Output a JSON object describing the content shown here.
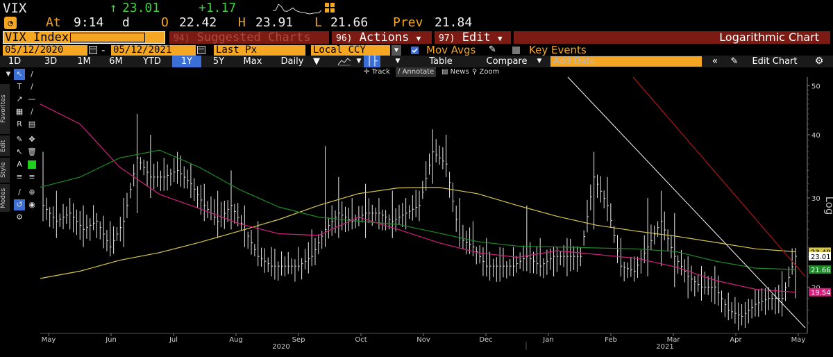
{
  "header": {
    "ticker": "VIX",
    "last_price": "23.01",
    "change": "+1.17",
    "time_prefix": "At",
    "time": "9:14",
    "time_suffix": "d",
    "open_label": "O",
    "open": "22.42",
    "high_label": "H",
    "high": "23.91",
    "low_label": "L",
    "low": "21.66",
    "prev_label": "Prev",
    "prev": "21.84"
  },
  "function_bar": {
    "security": "VIX Index",
    "suggested_num": "94)",
    "suggested": "Suggested Charts",
    "actions_num": "96)",
    "actions": "Actions",
    "edit_num": "97)",
    "edit": "Edit",
    "chart_mode": "Logarithmic Chart"
  },
  "date_row": {
    "start": "05/12/2020",
    "sep": "-",
    "end": "05/12/2021",
    "field": "Last Px",
    "currency": "Local CCY",
    "mov_avgs": "Mov Avgs",
    "key_events": "Key Events"
  },
  "toolbar": {
    "ranges": [
      "1D",
      "3D",
      "1M",
      "6M",
      "YTD",
      "1Y",
      "5Y",
      "Max"
    ],
    "selected_range": "1Y",
    "frequency": "Daily",
    "table": "Table",
    "compare": "Compare",
    "add_data_placeholder": "Add Data",
    "edit_chart": "Edit Chart"
  },
  "sub_toolbar": {
    "track": "Track",
    "annotate": "Annotate",
    "news": "News",
    "zoom": "Zoom"
  },
  "side_tabs": [
    "Favorites",
    "Edit",
    "Style",
    "Modes"
  ],
  "colors": {
    "accent_orange": "#f5a623",
    "price_bars": "#e8e8e8",
    "ma_yellow": "#d8c84a",
    "ma_green": "#1e8a2a",
    "ma_magenta": "#d0207a",
    "trend_white": "#ffffff",
    "trend_red": "#b01818"
  },
  "chart_data": {
    "type": "ohlc",
    "scale": "log",
    "ylabel": "Log",
    "ylim": [
      16.2,
      52
    ],
    "y_ticks": [
      20,
      30,
      40,
      50
    ],
    "x_month_ticks": [
      "May",
      "Jun",
      "Jul",
      "Aug",
      "Sep",
      "Oct",
      "Nov",
      "Dec",
      "Jan",
      "Feb",
      "Mar",
      "Apr",
      "May"
    ],
    "x_year_labels": [
      "2020",
      "2021"
    ],
    "price_series": [
      {
        "date": "2020-05",
        "low": 27,
        "high": 37,
        "close": 29
      },
      {
        "date": "2020-05",
        "low": 25,
        "high": 31,
        "close": 27
      },
      {
        "date": "2020-05",
        "low": 26,
        "high": 30,
        "close": 28
      },
      {
        "date": "2020-05",
        "low": 24,
        "high": 29,
        "close": 26
      },
      {
        "date": "2020-05",
        "low": 25,
        "high": 28,
        "close": 27
      },
      {
        "date": "2020-06",
        "low": 23,
        "high": 27,
        "close": 24
      },
      {
        "date": "2020-06",
        "low": 24,
        "high": 30,
        "close": 27
      },
      {
        "date": "2020-06",
        "low": 28,
        "high": 44,
        "close": 36
      },
      {
        "date": "2020-06",
        "low": 30,
        "high": 40,
        "close": 33
      },
      {
        "date": "2020-06",
        "low": 31,
        "high": 36,
        "close": 33
      },
      {
        "date": "2020-06",
        "low": 32,
        "high": 37,
        "close": 34
      },
      {
        "date": "2020-07",
        "low": 30,
        "high": 35,
        "close": 32
      },
      {
        "date": "2020-07",
        "low": 27,
        "high": 32,
        "close": 29
      },
      {
        "date": "2020-07",
        "low": 25,
        "high": 31,
        "close": 27
      },
      {
        "date": "2020-07",
        "low": 26,
        "high": 34,
        "close": 29
      },
      {
        "date": "2020-07",
        "low": 24,
        "high": 29,
        "close": 26
      },
      {
        "date": "2020-08",
        "low": 22,
        "high": 27,
        "close": 23
      },
      {
        "date": "2020-08",
        "low": 21,
        "high": 24,
        "close": 22
      },
      {
        "date": "2020-08",
        "low": 21,
        "high": 23,
        "close": 22
      },
      {
        "date": "2020-08",
        "low": 21.5,
        "high": 24,
        "close": 22
      },
      {
        "date": "2020-08",
        "low": 22,
        "high": 26,
        "close": 23
      },
      {
        "date": "2020-09",
        "low": 24,
        "high": 38,
        "close": 26
      },
      {
        "date": "2020-09",
        "low": 25,
        "high": 33,
        "close": 28
      },
      {
        "date": "2020-09",
        "low": 26,
        "high": 30,
        "close": 27
      },
      {
        "date": "2020-09",
        "low": 25,
        "high": 32,
        "close": 28
      },
      {
        "date": "2020-09",
        "low": 26,
        "high": 30,
        "close": 28
      },
      {
        "date": "2020-10",
        "low": 25,
        "high": 31,
        "close": 27
      },
      {
        "date": "2020-10",
        "low": 26,
        "high": 30,
        "close": 28
      },
      {
        "date": "2020-10",
        "low": 27,
        "high": 31,
        "close": 29
      },
      {
        "date": "2020-10",
        "low": 32,
        "high": 41,
        "close": 37
      },
      {
        "date": "2020-10",
        "low": 33,
        "high": 40,
        "close": 35
      },
      {
        "date": "2020-11",
        "low": 24,
        "high": 30,
        "close": 25
      },
      {
        "date": "2020-11",
        "low": 23,
        "high": 27,
        "close": 24
      },
      {
        "date": "2020-11",
        "low": 21,
        "high": 25,
        "close": 22
      },
      {
        "date": "2020-11",
        "low": 20.5,
        "high": 24,
        "close": 22
      },
      {
        "date": "2020-12",
        "low": 21,
        "high": 24,
        "close": 22
      },
      {
        "date": "2020-12",
        "low": 21.5,
        "high": 29,
        "close": 23
      },
      {
        "date": "2020-12",
        "low": 21,
        "high": 25,
        "close": 22
      },
      {
        "date": "2020-12",
        "low": 21,
        "high": 24,
        "close": 23
      },
      {
        "date": "2021-01",
        "low": 21,
        "high": 25,
        "close": 23
      },
      {
        "date": "2021-01",
        "low": 22,
        "high": 24,
        "close": 23
      },
      {
        "date": "2021-01",
        "low": 26,
        "high": 37,
        "close": 33
      },
      {
        "date": "2021-01",
        "low": 27,
        "high": 33,
        "close": 29
      },
      {
        "date": "2021-02",
        "low": 21,
        "high": 25,
        "close": 22
      },
      {
        "date": "2021-02",
        "low": 20.5,
        "high": 23,
        "close": 21.5
      },
      {
        "date": "2021-02",
        "low": 21,
        "high": 30,
        "close": 24
      },
      {
        "date": "2021-02",
        "low": 22,
        "high": 31,
        "close": 27
      },
      {
        "date": "2021-03",
        "low": 20,
        "high": 28,
        "close": 23
      },
      {
        "date": "2021-03",
        "low": 19,
        "high": 23,
        "close": 21
      },
      {
        "date": "2021-03",
        "low": 18.8,
        "high": 22,
        "close": 20
      },
      {
        "date": "2021-03",
        "low": 18.5,
        "high": 22,
        "close": 20
      },
      {
        "date": "2021-04",
        "low": 17.2,
        "high": 19.5,
        "close": 18
      },
      {
        "date": "2021-04",
        "low": 16.8,
        "high": 18.5,
        "close": 17.5
      },
      {
        "date": "2021-04",
        "low": 17.5,
        "high": 19.8,
        "close": 18.5
      },
      {
        "date": "2021-04",
        "low": 18,
        "high": 20,
        "close": 19
      },
      {
        "date": "2021-05",
        "low": 17.5,
        "high": 21.5,
        "close": 19
      },
      {
        "date": "2021-05",
        "low": 19,
        "high": 23.9,
        "close": 23.01
      }
    ],
    "moving_averages": [
      {
        "color": "yellow",
        "last_value": "23.49",
        "values": [
          20.8,
          21.5,
          22.6,
          23.4,
          24.5,
          25.8,
          27.2,
          29.0,
          30.6,
          31.4,
          31.5,
          30.6,
          29.0,
          27.6,
          26.5,
          25.8,
          25.2,
          24.5,
          23.8,
          23.49
        ]
      },
      {
        "color": "green",
        "last_value": "21.66",
        "values": [
          31.5,
          33.0,
          36.0,
          37.3,
          34.5,
          31.2,
          28.8,
          27.5,
          27.0,
          26.6,
          25.6,
          24.6,
          24.1,
          24.0,
          23.9,
          23.8,
          23.5,
          22.5,
          21.8,
          21.66
        ]
      },
      {
        "color": "magenta",
        "last_value": "19.54",
        "values": [
          46.0,
          42.0,
          34.5,
          30.5,
          28.6,
          26.7,
          25.5,
          25.3,
          27.5,
          26.0,
          24.5,
          23.4,
          22.9,
          23.6,
          23.2,
          22.8,
          21.9,
          20.6,
          19.8,
          19.54
        ]
      }
    ],
    "price_tag": "23.01"
  }
}
